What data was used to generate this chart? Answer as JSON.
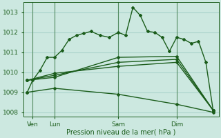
{
  "xlabel": "Pression niveau de la mer( hPa )",
  "background_color": "#cce8e0",
  "grid_color": "#aad4cc",
  "line_color": "#1a5c1a",
  "ylim": [
    1007.8,
    1013.5
  ],
  "xlim": [
    -0.2,
    10.5
  ],
  "yticks": [
    1008,
    1009,
    1010,
    1011,
    1012,
    1013
  ],
  "ytick_labels": [
    "1008",
    "1009",
    "1010",
    "1011",
    "1012",
    "1013"
  ],
  "xtick_positions": [
    0.3,
    1.5,
    5.0,
    8.2
  ],
  "xtick_labels": [
    "Ven",
    "Lun",
    "Sam",
    "Dim"
  ],
  "vlines": [
    0.3,
    1.5,
    5.0,
    8.2
  ],
  "series": [
    {
      "x": [
        0.0,
        0.3,
        0.7,
        1.1,
        1.5,
        1.9,
        2.3,
        2.7,
        3.1,
        3.5,
        4.0,
        4.5,
        5.0,
        5.4,
        5.8,
        6.2,
        6.6,
        7.0,
        7.4,
        7.8,
        8.2,
        8.6,
        9.0,
        9.4,
        9.8,
        10.2
      ],
      "y": [
        1009.0,
        1009.6,
        1010.1,
        1010.75,
        1010.75,
        1011.1,
        1011.65,
        1011.85,
        1011.95,
        1012.05,
        1011.85,
        1011.75,
        1012.0,
        1011.85,
        1013.25,
        1012.85,
        1012.05,
        1012.0,
        1011.75,
        1011.05,
        1011.75,
        1011.65,
        1011.45,
        1011.55,
        1010.5,
        1008.1
      ]
    },
    {
      "x": [
        0.0,
        1.5,
        5.0,
        8.2,
        10.2
      ],
      "y": [
        1009.6,
        1009.75,
        1010.75,
        1010.8,
        1008.1
      ]
    },
    {
      "x": [
        0.0,
        1.5,
        5.0,
        8.2,
        10.2
      ],
      "y": [
        1009.6,
        1009.85,
        1010.5,
        1010.65,
        1008.1
      ]
    },
    {
      "x": [
        0.0,
        1.5,
        5.0,
        8.2,
        10.2
      ],
      "y": [
        1009.6,
        1009.95,
        1010.3,
        1010.5,
        1008.1
      ]
    },
    {
      "x": [
        0.0,
        1.5,
        5.0,
        8.2,
        10.2
      ],
      "y": [
        1009.0,
        1009.2,
        1008.9,
        1008.4,
        1008.0
      ]
    }
  ]
}
